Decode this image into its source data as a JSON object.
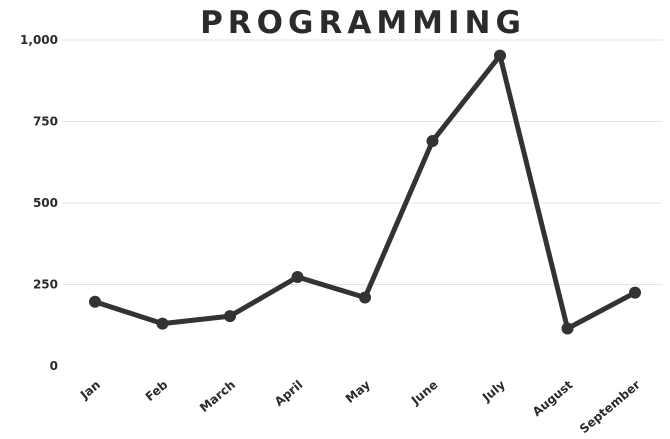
{
  "chart_data": {
    "type": "line",
    "title": "PROGRAMMING",
    "categories": [
      "Jan",
      "Feb",
      "March",
      "April",
      "May",
      "June",
      "July",
      "August",
      "September"
    ],
    "series": [
      {
        "values": [
          197,
          130,
          153,
          273,
          210,
          690,
          952,
          115,
          225
        ]
      }
    ],
    "yticks": [
      "0",
      "250",
      "500",
      "750",
      "1,000"
    ],
    "ylim": [
      0,
      1000
    ],
    "grid": true,
    "xlabel": "",
    "ylabel": "",
    "colors": {
      "line": "#333333",
      "grid": "#e4e4e4",
      "text": "#2b2b2b"
    }
  }
}
